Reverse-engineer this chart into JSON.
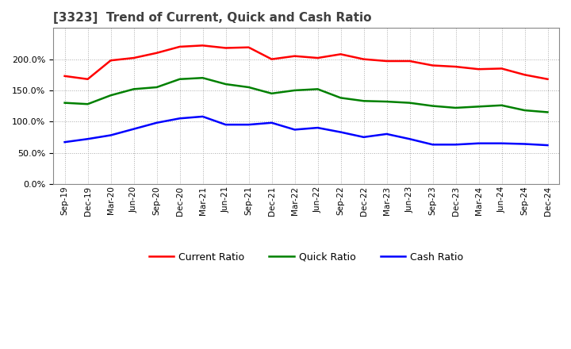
{
  "title": "[3323]  Trend of Current, Quick and Cash Ratio",
  "x_labels": [
    "Sep-19",
    "Dec-19",
    "Mar-20",
    "Jun-20",
    "Sep-20",
    "Dec-20",
    "Mar-21",
    "Jun-21",
    "Sep-21",
    "Dec-21",
    "Mar-22",
    "Jun-22",
    "Sep-22",
    "Dec-22",
    "Mar-23",
    "Jun-23",
    "Sep-23",
    "Dec-23",
    "Mar-24",
    "Jun-24",
    "Sep-24",
    "Dec-24"
  ],
  "current_ratio": [
    1.73,
    1.68,
    1.98,
    2.02,
    2.1,
    2.2,
    2.22,
    2.18,
    2.19,
    2.0,
    2.05,
    2.02,
    2.08,
    2.0,
    1.97,
    1.97,
    1.9,
    1.88,
    1.84,
    1.85,
    1.75,
    1.68
  ],
  "quick_ratio": [
    1.3,
    1.28,
    1.42,
    1.52,
    1.55,
    1.68,
    1.7,
    1.6,
    1.55,
    1.45,
    1.5,
    1.52,
    1.38,
    1.33,
    1.32,
    1.3,
    1.25,
    1.22,
    1.24,
    1.26,
    1.18,
    1.15
  ],
  "cash_ratio": [
    0.67,
    0.72,
    0.78,
    0.88,
    0.98,
    1.05,
    1.08,
    0.95,
    0.95,
    0.98,
    0.87,
    0.9,
    0.83,
    0.75,
    0.8,
    0.72,
    0.63,
    0.63,
    0.65,
    0.65,
    0.64,
    0.62
  ],
  "current_color": "#ff0000",
  "quick_color": "#008000",
  "cash_color": "#0000ff",
  "ylim": [
    0.0,
    2.5
  ],
  "yticks": [
    0.0,
    0.5,
    1.0,
    1.5,
    2.0
  ],
  "background_color": "#ffffff",
  "grid_color": "#aaaaaa",
  "title_color": "#404040",
  "line_width": 1.8
}
